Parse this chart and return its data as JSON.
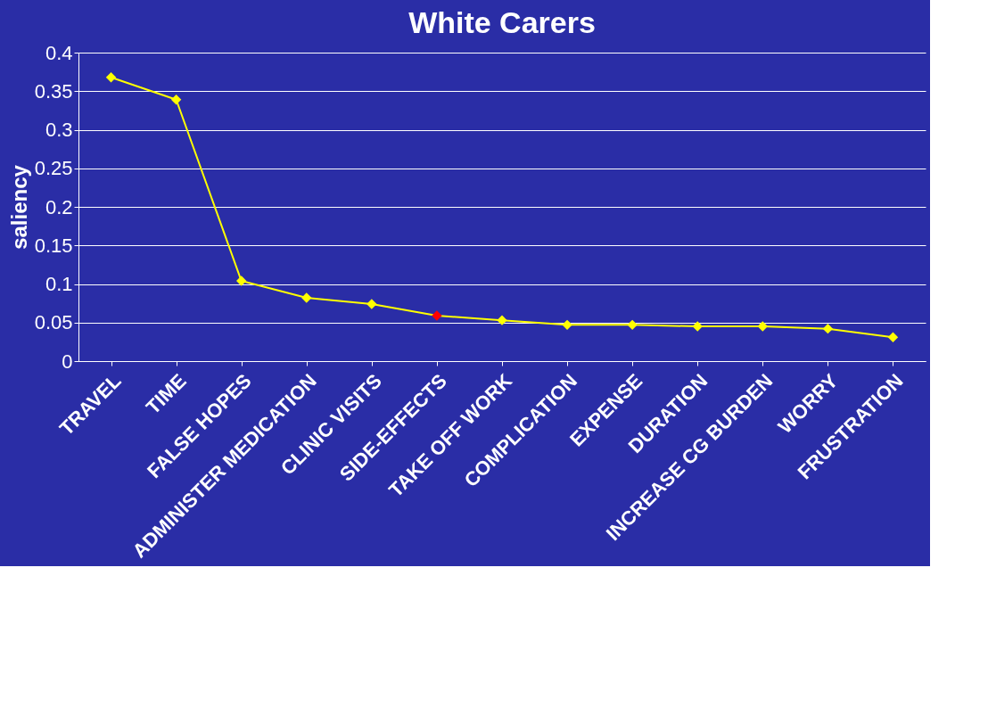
{
  "chart_data": {
    "type": "line",
    "title": "White Carers",
    "ylabel": "saliency",
    "categories": [
      "TRAVEL",
      "TIME",
      "FALSE HOPES",
      "ADMINISTER MEDICATION",
      "CLINIC VISITS",
      "SIDE-EFFECTS",
      "TAKE OFF WORK",
      "COMPLICATION",
      "EXPENSE",
      "DURATION",
      "INCREASE CG BURDEN",
      "WORRY",
      "FRUSTRATION"
    ],
    "series": [
      {
        "color": "#ffff00",
        "colors": [
          "#ffff00",
          "#ffff00",
          "#ffff00",
          "#ffff00",
          "#ffff00",
          "#ff0000",
          "#ffff00",
          "#ffff00",
          "#ffff00",
          "#ffff00",
          "#ffff00",
          "#ffff00",
          "#ffff00"
        ],
        "values": [
          0.368,
          0.339,
          0.104,
          0.082,
          0.074,
          0.059,
          0.053,
          0.047,
          0.047,
          0.045,
          0.045,
          0.042,
          0.031
        ]
      }
    ],
    "ylim": [
      0,
      0.4
    ],
    "yticks": [
      0,
      0.05,
      0.1,
      0.15,
      0.2,
      0.25,
      0.3,
      0.35,
      0.4
    ],
    "grid": "y",
    "marker": "diamond",
    "line_style": "solid"
  }
}
